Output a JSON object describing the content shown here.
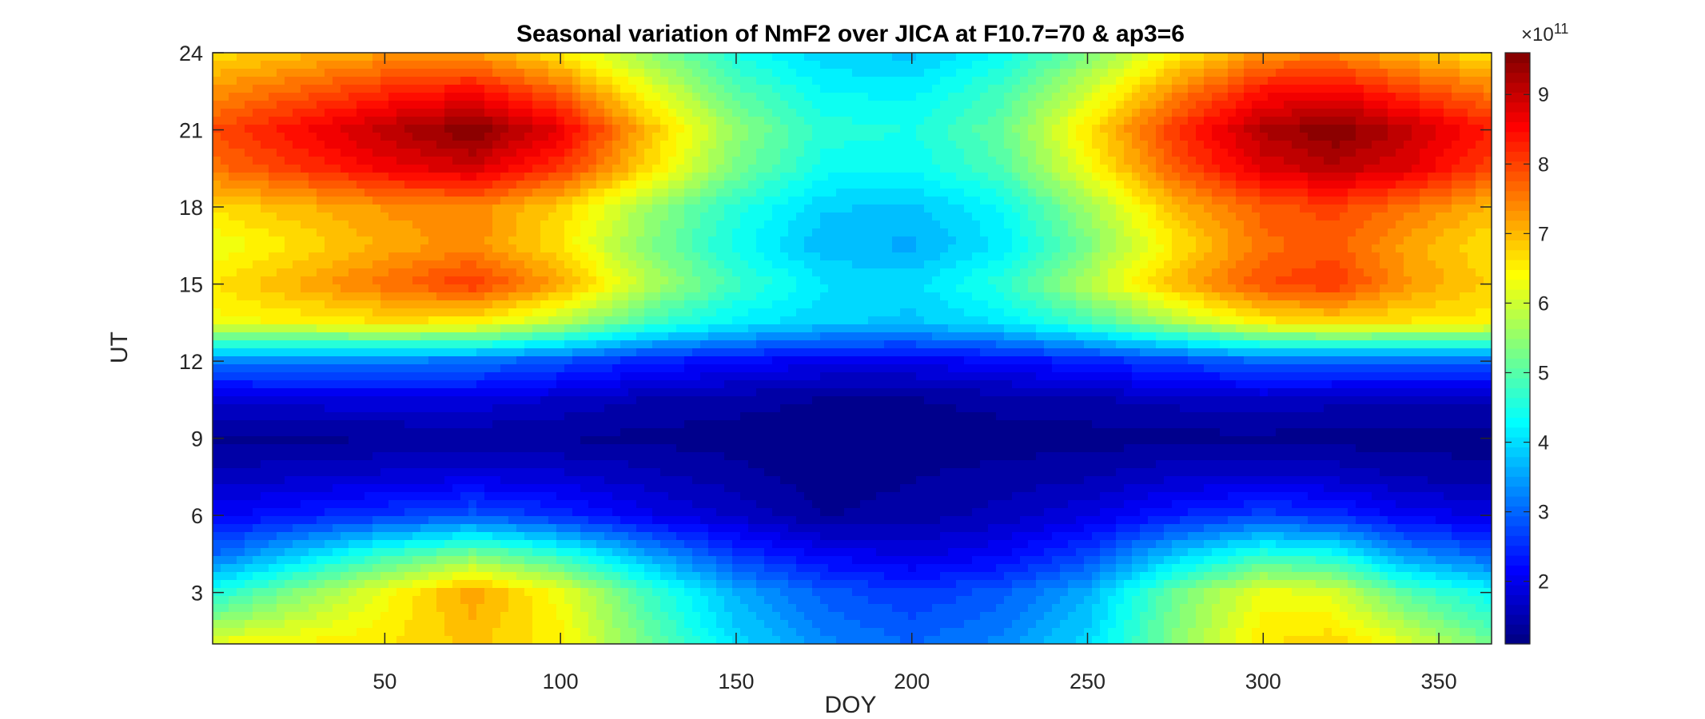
{
  "chart_data": {
    "type": "heatmap",
    "subtype": "filled-contour",
    "title": "Seasonal variation of NmF2 over JICA at F10.7=70 & ap3=6",
    "xlabel": "DOY",
    "ylabel": "UT",
    "xlim": [
      1,
      365
    ],
    "ylim": [
      1,
      24
    ],
    "xticks": [
      50,
      100,
      150,
      200,
      250,
      300,
      350
    ],
    "yticks": [
      3,
      6,
      9,
      12,
      15,
      18,
      21,
      24
    ],
    "colormap": "jet",
    "colorbar": {
      "clim": [
        110000000000.0,
        960000000000.0
      ],
      "ticks": [
        2,
        3,
        4,
        5,
        6,
        7,
        8,
        9
      ],
      "exponent_label": "×10",
      "exponent": "11",
      "location": "right"
    },
    "grid": false,
    "doy": [
      1,
      50,
      75,
      100,
      125,
      150,
      175,
      200,
      225,
      250,
      275,
      300,
      320,
      340,
      365
    ],
    "ut": [
      1,
      3,
      4.5,
      6,
      7.5,
      9,
      10.5,
      12,
      13.5,
      15,
      16.5,
      18,
      19.5,
      21,
      22.5,
      24
    ],
    "values_e11": [
      [
        6.3,
        6.6,
        6.9,
        6.5,
        5.2,
        4.0,
        3.3,
        3.0,
        3.3,
        4.0,
        5.4,
        6.6,
        6.8,
        6.2,
        5.2
      ],
      [
        4.5,
        6.3,
        7.2,
        6.3,
        4.8,
        3.6,
        2.9,
        2.6,
        2.9,
        3.6,
        5.2,
        6.3,
        6.1,
        5.0,
        4.3
      ],
      [
        3.0,
        4.7,
        5.3,
        4.6,
        3.5,
        2.6,
        2.1,
        1.9,
        2.1,
        2.7,
        3.8,
        4.6,
        4.4,
        3.4,
        2.9
      ],
      [
        2.1,
        2.6,
        2.9,
        2.5,
        2.0,
        1.7,
        1.3,
        1.4,
        1.6,
        1.9,
        2.4,
        2.7,
        2.5,
        2.1,
        1.9
      ],
      [
        1.6,
        1.8,
        1.9,
        1.8,
        1.6,
        1.4,
        1.2,
        1.3,
        1.4,
        1.5,
        1.7,
        1.8,
        1.7,
        1.5,
        1.4
      ],
      [
        1.25,
        1.3,
        1.35,
        1.3,
        1.25,
        1.2,
        1.15,
        1.15,
        1.2,
        1.2,
        1.25,
        1.25,
        1.2,
        1.2,
        1.2
      ],
      [
        1.8,
        1.9,
        1.9,
        1.7,
        1.5,
        1.4,
        1.3,
        1.3,
        1.4,
        1.5,
        1.6,
        1.7,
        1.6,
        1.6,
        1.6
      ],
      [
        3.2,
        3.2,
        3.1,
        2.8,
        2.4,
        2.2,
        2.0,
        2.0,
        2.2,
        2.4,
        2.7,
        3.0,
        3.0,
        3.0,
        3.0
      ],
      [
        6.3,
        6.6,
        6.5,
        5.8,
        4.8,
        4.2,
        3.9,
        3.8,
        4.1,
        4.8,
        5.7,
        6.5,
        6.7,
        6.6,
        6.5
      ],
      [
        6.6,
        7.6,
        8.1,
        7.2,
        5.8,
        4.8,
        4.1,
        4.0,
        4.6,
        5.8,
        7.0,
        7.9,
        8.1,
        7.3,
        6.8
      ],
      [
        6.2,
        7.1,
        7.4,
        6.6,
        5.4,
        4.4,
        3.7,
        3.6,
        4.1,
        5.3,
        6.6,
        7.6,
        7.8,
        7.2,
        6.6
      ],
      [
        6.7,
        7.3,
        7.4,
        6.8,
        5.6,
        4.6,
        3.9,
        3.8,
        4.3,
        5.6,
        7.0,
        7.8,
        8.0,
        7.6,
        7.0
      ],
      [
        7.6,
        8.6,
        8.9,
        8.1,
        6.7,
        5.3,
        4.4,
        4.3,
        4.9,
        6.3,
        7.8,
        8.8,
        9.1,
        8.8,
        8.0
      ],
      [
        7.9,
        9.1,
        9.6,
        8.7,
        7.0,
        5.5,
        4.6,
        4.5,
        5.1,
        6.6,
        8.1,
        9.2,
        9.6,
        9.1,
        8.3
      ],
      [
        7.3,
        8.2,
        8.5,
        7.7,
        6.3,
        5.0,
        4.3,
        4.2,
        4.8,
        6.0,
        7.4,
        8.4,
        8.6,
        8.1,
        7.5
      ],
      [
        6.7,
        7.2,
        7.2,
        6.6,
        5.5,
        4.5,
        3.9,
        3.8,
        4.3,
        5.3,
        6.5,
        7.3,
        7.4,
        7.0,
        6.6
      ]
    ]
  }
}
